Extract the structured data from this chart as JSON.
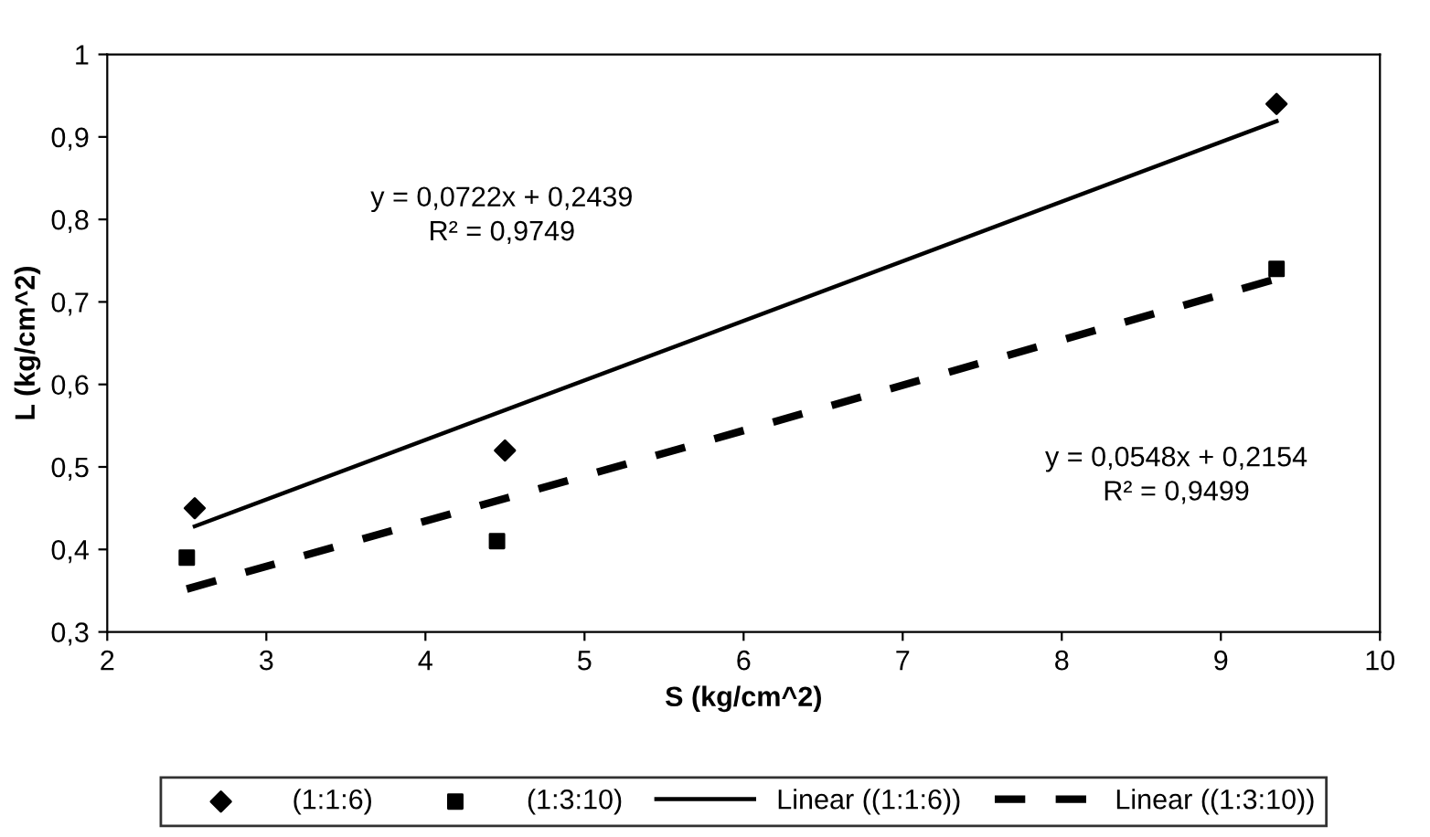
{
  "chart_data": {
    "type": "scatter",
    "xlabel": "S (kg/cm^2)",
    "ylabel": "L (kg/cm^2)",
    "xlim": [
      2,
      10
    ],
    "xticks": [
      2,
      3,
      4,
      5,
      6,
      7,
      8,
      9,
      10
    ],
    "ylim": [
      0.3,
      1
    ],
    "yticks": [
      {
        "value": 0.3,
        "label": "0,3"
      },
      {
        "value": 0.4,
        "label": "0,4"
      },
      {
        "value": 0.5,
        "label": "0,5"
      },
      {
        "value": 0.6,
        "label": "0,6"
      },
      {
        "value": 0.7,
        "label": "0,7"
      },
      {
        "value": 0.8,
        "label": "0,8"
      },
      {
        "value": 0.9,
        "label": "0,9"
      },
      1
    ],
    "grid": false,
    "legend": "bottom",
    "series": [
      {
        "name": "(1:1:6)",
        "marker": "diamond",
        "color": "#000000",
        "x": [
          2.55,
          4.5,
          9.35
        ],
        "values": [
          0.45,
          0.52,
          0.94
        ]
      },
      {
        "name": "(1:3:10)",
        "marker": "square",
        "color": "#000000",
        "x": [
          2.5,
          4.45,
          9.35
        ],
        "values": [
          0.39,
          0.41,
          0.74
        ]
      },
      {
        "name": "Linear ((1:1:6))",
        "type": "line",
        "line_style": "solid",
        "color": "#000000",
        "x": [
          2.55,
          9.35
        ],
        "values": [
          0.428,
          0.919
        ]
      },
      {
        "name": "Linear ((1:3:10))",
        "type": "line",
        "line_style": "dashed",
        "color": "#000000",
        "x": [
          2.5,
          9.35
        ],
        "values": [
          0.352,
          0.728
        ]
      }
    ],
    "annotations": [
      "y = 0,0722x + 0,2439\nR² = 0,9749",
      "y = 0,0548x + 0,2154\nR² = 0,9499"
    ]
  }
}
